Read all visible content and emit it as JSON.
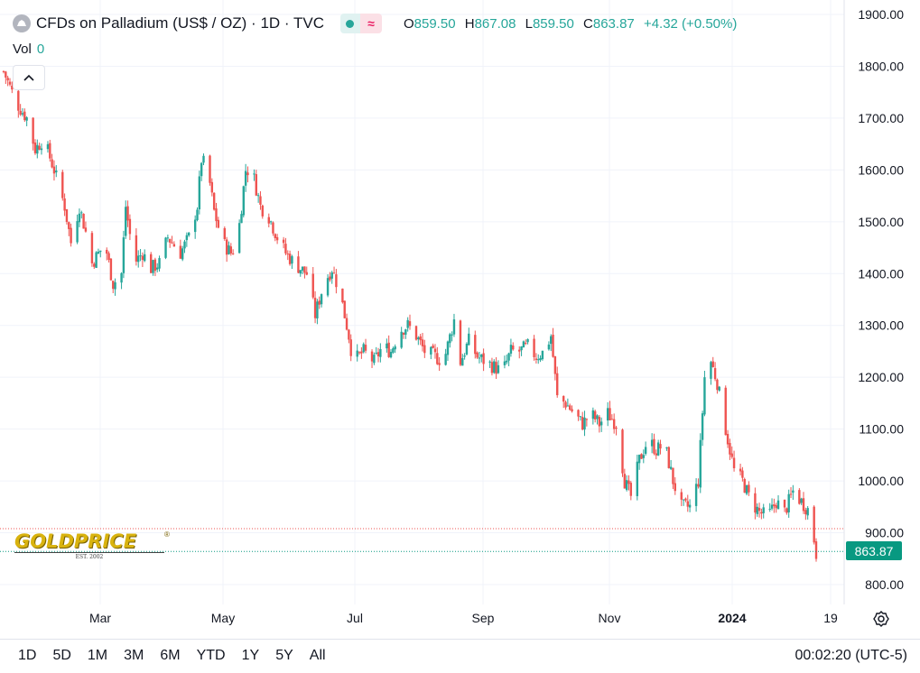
{
  "header": {
    "title": "CFDs on Palladium (US$ / OZ) · 1D · TVC",
    "ohlc": {
      "o_label": "O",
      "o": "859.50",
      "h_label": "H",
      "h": "867.08",
      "l_label": "L",
      "l": "859.50",
      "c_label": "C",
      "c": "863.87",
      "change": "+4.32 (+0.50%)"
    },
    "vol_label": "Vol",
    "vol_value": "0"
  },
  "price_tag": "863.87",
  "logo": {
    "name": "GOLDPRICE",
    "est": "EST. 2002"
  },
  "ranges": [
    "1D",
    "5D",
    "1M",
    "3M",
    "6M",
    "YTD",
    "1Y",
    "5Y",
    "All"
  ],
  "clock": "00:02:20 (UTC-5)",
  "colors": {
    "up": "#26a69a",
    "down": "#ef5350",
    "accent": "#089981",
    "grid": "#f0f3fa"
  },
  "chart_data": {
    "type": "candlestick",
    "title": "CFDs on Palladium (US$ / OZ) · 1D · TVC",
    "ylim": [
      800,
      1900
    ],
    "yticks": [
      "800.00",
      "900.00",
      "1000.00",
      "1100.00",
      "1200.00",
      "1300.00",
      "1400.00",
      "1500.00",
      "1600.00",
      "1700.00",
      "1800.00",
      "1900.00"
    ],
    "xticks": [
      "Mar",
      "May",
      "Jul",
      "Sep",
      "Nov",
      "2024",
      "19"
    ],
    "grid": true,
    "last_close": 863.87,
    "prev_close_line": 908,
    "path": [
      [
        "2023-01-30",
        1790
      ],
      [
        "2023-02-05",
        1730
      ],
      [
        "2023-02-10",
        1700
      ],
      [
        "2023-02-14",
        1640
      ],
      [
        "2023-02-18",
        1660
      ],
      [
        "2023-02-23",
        1600
      ],
      [
        "2023-02-28",
        1530
      ],
      [
        "2023-03-03",
        1460
      ],
      [
        "2023-03-07",
        1530
      ],
      [
        "2023-03-10",
        1480
      ],
      [
        "2023-03-13",
        1420
      ],
      [
        "2023-03-17",
        1445
      ],
      [
        "2023-03-20",
        1440
      ],
      [
        "2023-03-23",
        1380
      ],
      [
        "2023-03-27",
        1400
      ],
      [
        "2023-03-29",
        1530
      ],
      [
        "2023-04-02",
        1420
      ],
      [
        "2023-04-06",
        1440
      ],
      [
        "2023-04-10",
        1410
      ],
      [
        "2023-04-14",
        1420
      ],
      [
        "2023-04-18",
        1470
      ],
      [
        "2023-04-24",
        1440
      ],
      [
        "2023-04-28",
        1470
      ],
      [
        "2023-05-02",
        1530
      ],
      [
        "2023-05-04",
        1620
      ],
      [
        "2023-05-07",
        1600
      ],
      [
        "2023-05-10",
        1520
      ],
      [
        "2023-05-14",
        1460
      ],
      [
        "2023-05-18",
        1440
      ],
      [
        "2023-05-21",
        1460
      ],
      [
        "2023-05-25",
        1600
      ],
      [
        "2023-05-28",
        1600
      ],
      [
        "2023-06-01",
        1530
      ],
      [
        "2023-06-05",
        1510
      ],
      [
        "2023-06-09",
        1470
      ],
      [
        "2023-06-13",
        1440
      ],
      [
        "2023-06-17",
        1420
      ],
      [
        "2023-06-23",
        1400
      ],
      [
        "2023-06-27",
        1320
      ],
      [
        "2023-07-01",
        1380
      ],
      [
        "2023-07-05",
        1410
      ],
      [
        "2023-07-09",
        1360
      ],
      [
        "2023-07-13",
        1280
      ],
      [
        "2023-07-15",
        1230
      ],
      [
        "2023-07-20",
        1250
      ],
      [
        "2023-07-25",
        1230
      ],
      [
        "2023-07-29",
        1260
      ],
      [
        "2023-08-02",
        1250
      ],
      [
        "2023-08-06",
        1290
      ],
      [
        "2023-08-10",
        1300
      ],
      [
        "2023-08-14",
        1280
      ],
      [
        "2023-08-18",
        1250
      ],
      [
        "2023-08-23",
        1240
      ],
      [
        "2023-08-27",
        1230
      ],
      [
        "2023-09-01",
        1310
      ],
      [
        "2023-09-04",
        1230
      ],
      [
        "2023-09-08",
        1270
      ],
      [
        "2023-09-12",
        1240
      ],
      [
        "2023-09-16",
        1230
      ],
      [
        "2023-09-20",
        1220
      ],
      [
        "2023-09-24",
        1210
      ],
      [
        "2023-09-28",
        1250
      ],
      [
        "2023-10-02",
        1250
      ],
      [
        "2023-10-06",
        1260
      ],
      [
        "2023-10-10",
        1240
      ],
      [
        "2023-10-14",
        1250
      ],
      [
        "2023-10-17",
        1280
      ],
      [
        "2023-10-20",
        1160
      ],
      [
        "2023-10-24",
        1150
      ],
      [
        "2023-10-28",
        1130
      ],
      [
        "2023-11-01",
        1110
      ],
      [
        "2023-11-05",
        1130
      ],
      [
        "2023-11-09",
        1110
      ],
      [
        "2023-11-13",
        1130
      ],
      [
        "2023-11-17",
        1110
      ],
      [
        "2023-11-21",
        1000
      ],
      [
        "2023-11-24",
        970
      ],
      [
        "2023-11-28",
        1040
      ],
      [
        "2023-12-02",
        1080
      ],
      [
        "2023-12-06",
        1060
      ],
      [
        "2023-12-10",
        1070
      ],
      [
        "2023-12-14",
        1000
      ],
      [
        "2023-12-18",
        950
      ],
      [
        "2023-12-22",
        950
      ],
      [
        "2023-12-26",
        1000
      ],
      [
        "2023-12-29",
        1200
      ],
      [
        "2024-01-01",
        1230
      ],
      [
        "2024-01-04",
        1190
      ],
      [
        "2024-01-08",
        1100
      ],
      [
        "2024-01-12",
        1020
      ],
      [
        "2024-01-16",
        1000
      ],
      [
        "2024-01-20",
        960
      ],
      [
        "2024-01-24",
        940
      ],
      [
        "2024-01-28",
        930
      ],
      [
        "2024-02-01",
        960
      ],
      [
        "2024-02-05",
        940
      ],
      [
        "2024-02-09",
        980
      ],
      [
        "2024-02-13",
        960
      ],
      [
        "2024-02-17",
        940
      ],
      [
        "2024-02-20",
        860
      ]
    ]
  }
}
